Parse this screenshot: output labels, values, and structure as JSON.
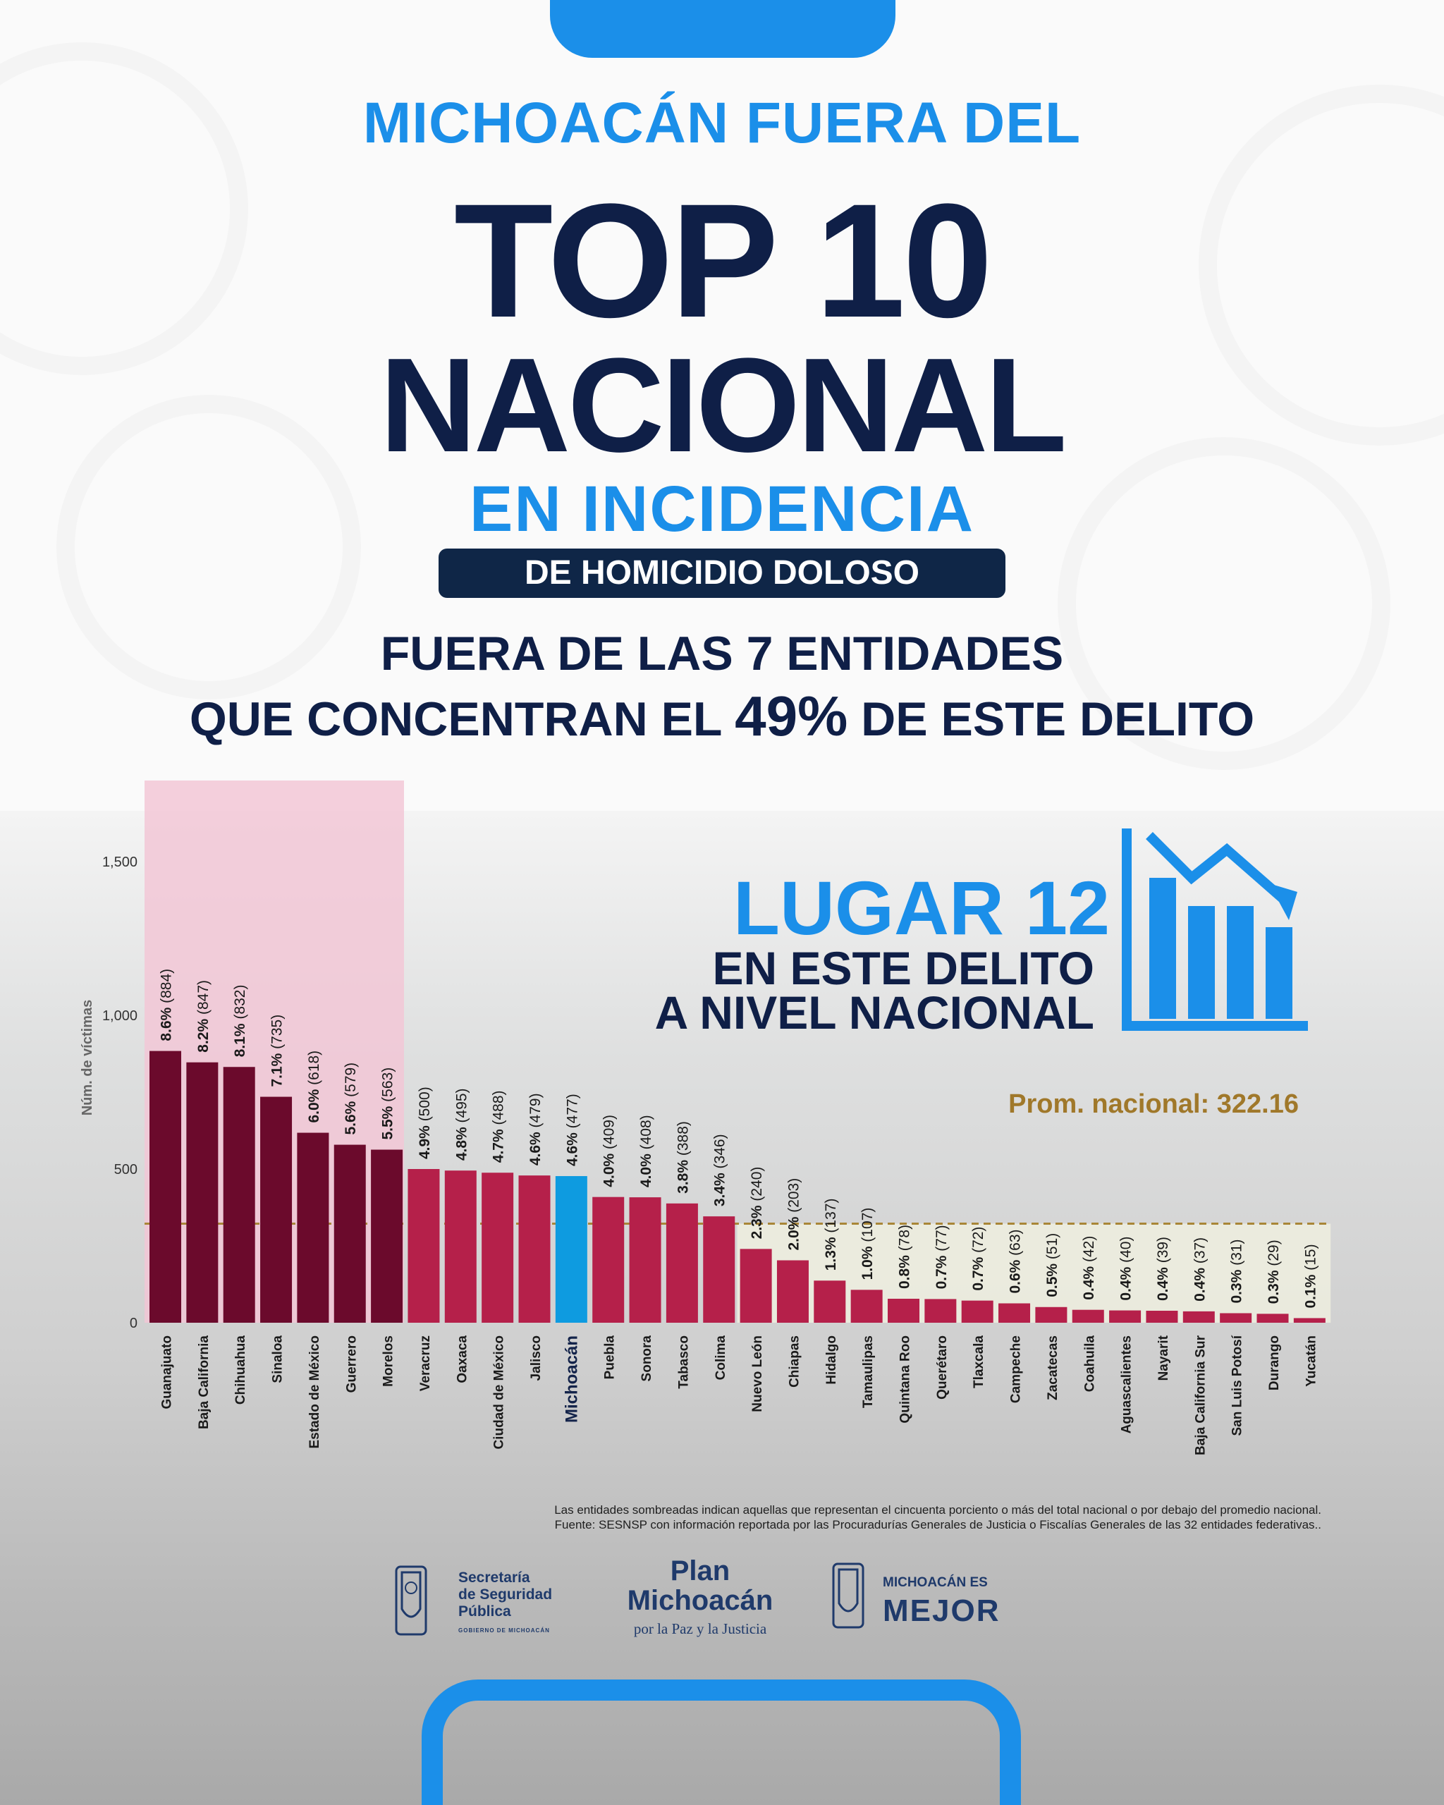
{
  "header": {
    "line1": "MICHOACÁN FUERA DEL",
    "line2": "TOP 10",
    "line3": "NACIONAL",
    "line4": "EN INCIDENCIA",
    "pill": "DE HOMICIDIO DOLOSO",
    "sub1": "FUERA DE LAS 7 ENTIDADES",
    "sub2_a": "QUE CONCENTRAN EL ",
    "sub2_b": "49%",
    "sub2_c": " DE ESTE DELITO"
  },
  "rank_box": {
    "lugar": "LUGAR 12",
    "line1": "EN ESTE DELITO",
    "line2": "A NIVEL NACIONAL",
    "icon": "bar-chart-decline-icon"
  },
  "chart_data": {
    "type": "bar",
    "ylabel": "Núm. de víctimas",
    "xlabel": "",
    "ylim": [
      0,
      1700
    ],
    "yticks": [
      0,
      500,
      1000,
      1500
    ],
    "ytick_labels": [
      "0",
      "500",
      "1,000",
      "1,500"
    ],
    "grid": false,
    "categories": [
      "Guanajuato",
      "Baja California",
      "Chihuahua",
      "Sinaloa",
      "Estado de México",
      "Guerrero",
      "Morelos",
      "Veracruz",
      "Oaxaca",
      "Ciudad de México",
      "Jalisco",
      "Michoacán",
      "Puebla",
      "Sonora",
      "Tabasco",
      "Colima",
      "Nuevo León",
      "Chiapas",
      "Hidalgo",
      "Tamaulipas",
      "Quintana Roo",
      "Querétaro",
      "Tlaxcala",
      "Campeche",
      "Zacatecas",
      "Coahuila",
      "Aguascalientes",
      "Nayarit",
      "Baja California Sur",
      "San Luis Potosí",
      "Durango",
      "Yucatán"
    ],
    "values": [
      884,
      847,
      832,
      735,
      618,
      579,
      563,
      500,
      495,
      488,
      479,
      477,
      409,
      408,
      388,
      346,
      240,
      203,
      137,
      107,
      78,
      77,
      72,
      63,
      51,
      42,
      40,
      39,
      37,
      31,
      29,
      15
    ],
    "percent_labels": [
      "8.6%",
      "8.2%",
      "8.1%",
      "7.1%",
      "6.0%",
      "5.6%",
      "5.5%",
      "4.9%",
      "4.8%",
      "4.7%",
      "4.6%",
      "4.6%",
      "4.0%",
      "4.0%",
      "3.8%",
      "3.4%",
      "2.3%",
      "2.0%",
      "1.3%",
      "1.0%",
      "0.8%",
      "0.7%",
      "0.7%",
      "0.6%",
      "0.5%",
      "0.4%",
      "0.4%",
      "0.4%",
      "0.4%",
      "0.3%",
      "0.3%",
      "0.1%"
    ],
    "count_labels": [
      "(884)",
      "(847)",
      "(832)",
      "(735)",
      "(618)",
      "(579)",
      "(563)",
      "(500)",
      "(495)",
      "(488)",
      "(479)",
      "(477)",
      "(409)",
      "(408)",
      "(388)",
      "(346)",
      "(240)",
      "(203)",
      "(137)",
      "(107)",
      "(78)",
      "(77)",
      "(72)",
      "(63)",
      "(51)",
      "(42)",
      "(40)",
      "(39)",
      "(37)",
      "(31)",
      "(29)",
      "(15)"
    ],
    "top_group_count": 7,
    "highlight": "Michoacán",
    "national_average": 322.16,
    "average_label": "Prom. nacional: 322.16",
    "colors": {
      "top_group": "#6b0a2c",
      "others": "#b5204a",
      "highlight": "#0e9be0",
      "top_shade": "#f2c7d6",
      "low_shade": "#eeeedf",
      "average_line": "#a98637",
      "average_text": "#a0782a",
      "highlight_label": "#13234a"
    }
  },
  "footnotes": {
    "line1": "Las entidades sombreadas indican aquellas que representan el cincuenta porciento o más del total nacional o por debajo del promedio nacional.",
    "line2": "Fuente: SESNSP con información reportada por las Procuradurías Generales de Justicia o Fiscalías Generales de las 32 entidades federativas.."
  },
  "logos": {
    "ssp_line1": "Secretaría",
    "ssp_line2": "de Seguridad",
    "ssp_line3": "Pública",
    "ssp_gov": "GOBIERNO DE MICHOACÁN",
    "plan_line1": "Plan",
    "plan_line2": "Michoacán",
    "plan_line3": "por la Paz y la Justicia",
    "mejor_line1": "MICHOACÁN ES",
    "mejor_line2": "MEJOR",
    "shield_icon": "state-coat-of-arms-icon"
  },
  "theme": {
    "navy": "#0f1f47",
    "blue": "#1b8fe9"
  }
}
